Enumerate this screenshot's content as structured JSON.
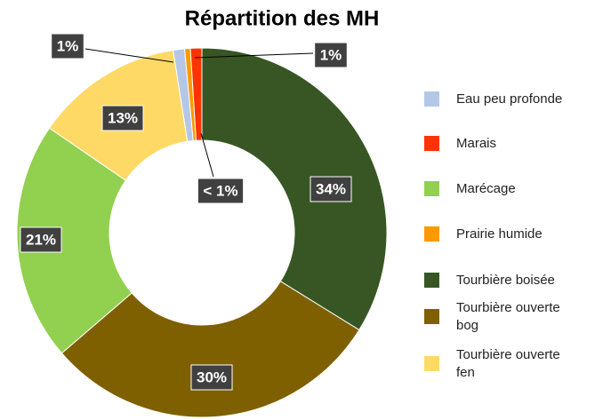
{
  "chart_data": {
    "type": "donut",
    "title": "Répartition des MH",
    "categories": [
      "Eau peu profonde",
      "Marais",
      "Marécage",
      "Prairie humide",
      "Tourbière boisée",
      "Tourbière ouverte bog",
      "Tourbière ouverte fen"
    ],
    "values": [
      1,
      1,
      21,
      0.5,
      34,
      30,
      13
    ],
    "value_labels": [
      "1%",
      "1%",
      "21%",
      "< 1%",
      "34%",
      "30%",
      "13%"
    ],
    "colors": [
      "#b4c7e7",
      "#ff3300",
      "#92d050",
      "#ff9900",
      "#375623",
      "#7f6000",
      "#ffd966"
    ],
    "legend": "right"
  }
}
